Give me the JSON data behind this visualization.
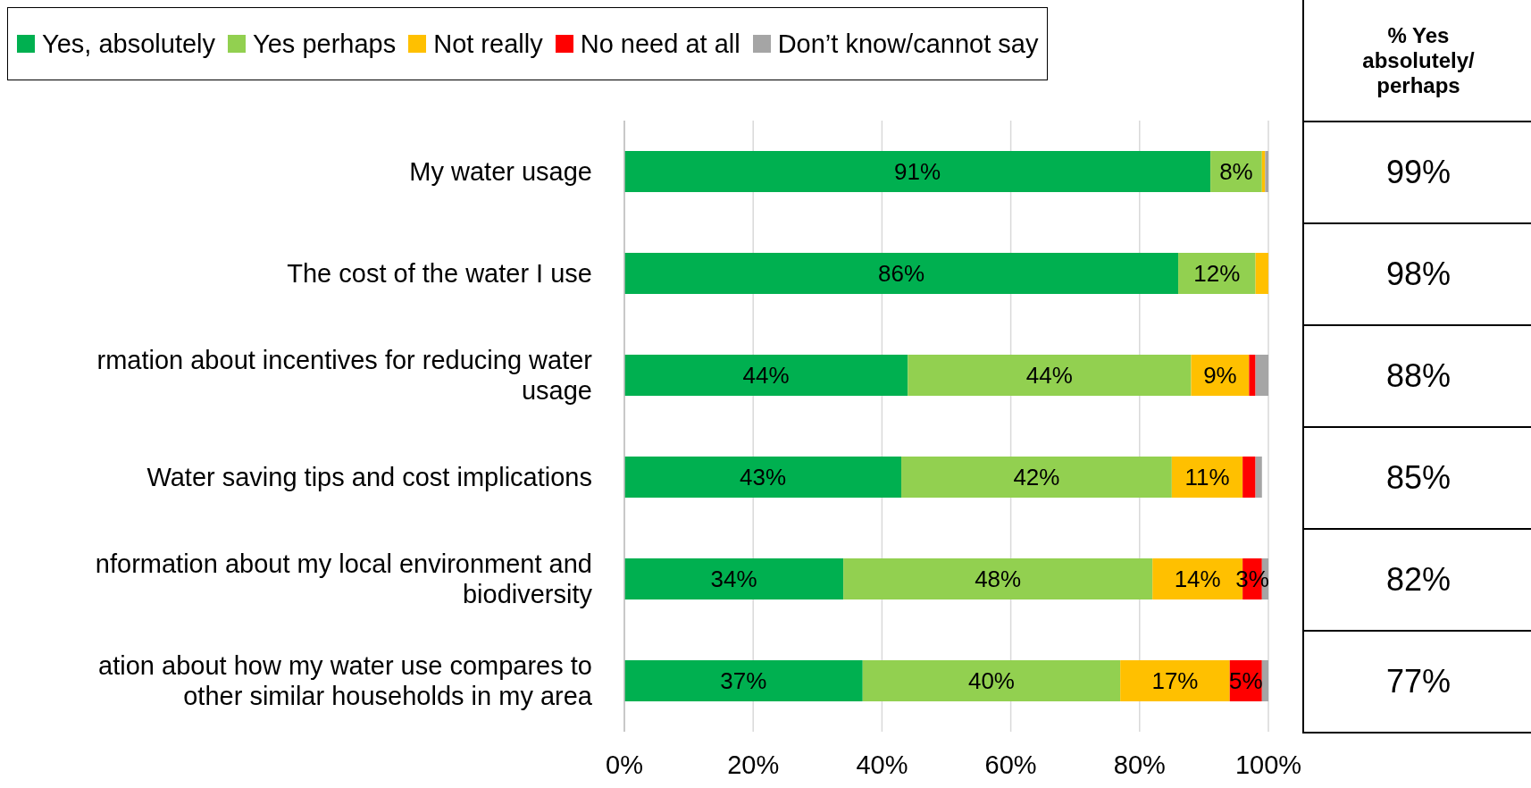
{
  "chart_data": [
    {
      "type": "bar",
      "orientation": "horizontal",
      "stacked": true,
      "categories": [
        "My water usage",
        "The cost of the water I use",
        "rmation about incentives for reducing water usage",
        "Water saving tips and cost implications",
        "nformation about my local environment and biodiversity",
        "ation about how my water use compares to other similar households in my area"
      ],
      "series": [
        {
          "name": "Yes, absolutely",
          "color": "#00b050",
          "values": [
            91,
            86,
            44,
            43,
            34,
            37
          ],
          "value_labels": [
            "91%",
            "86%",
            "44%",
            "43%",
            "34%",
            "37%"
          ]
        },
        {
          "name": "Yes perhaps",
          "color": "#92d050",
          "values": [
            8,
            12,
            44,
            42,
            48,
            40
          ],
          "value_labels": [
            "8%",
            "12%",
            "44%",
            "42%",
            "48%",
            "40%"
          ]
        },
        {
          "name": "Not really",
          "color": "#ffc000",
          "values": [
            0.5,
            2,
            9,
            11,
            14,
            17
          ],
          "value_labels": [
            null,
            null,
            "9%",
            "11%",
            "14%",
            "17%"
          ]
        },
        {
          "name": "No need at all",
          "color": "#ff0000",
          "values": [
            0,
            0,
            1,
            2,
            3,
            5
          ],
          "value_labels": [
            null,
            null,
            null,
            null,
            "3%",
            "5%"
          ]
        },
        {
          "name": "Don’t know/cannot say",
          "color": "#a5a5a5",
          "values": [
            0.5,
            0,
            2,
            1,
            1,
            1
          ],
          "value_labels": [
            null,
            null,
            null,
            null,
            null,
            null
          ]
        }
      ],
      "xlim": [
        0,
        100
      ],
      "xticks": [
        {
          "value": 0,
          "label": "0%"
        },
        {
          "value": 20,
          "label": "20%"
        },
        {
          "value": 40,
          "label": "40%"
        },
        {
          "value": 60,
          "label": "60%"
        },
        {
          "value": 80,
          "label": "80%"
        },
        {
          "value": 100,
          "label": "100%"
        }
      ],
      "grid": "x",
      "legend": "top"
    },
    {
      "type": "other",
      "title": "% Yes absolutely/ perhaps",
      "annotations": [
        "99%",
        "98%",
        "88%",
        "85%",
        "82%",
        "77%"
      ]
    }
  ]
}
